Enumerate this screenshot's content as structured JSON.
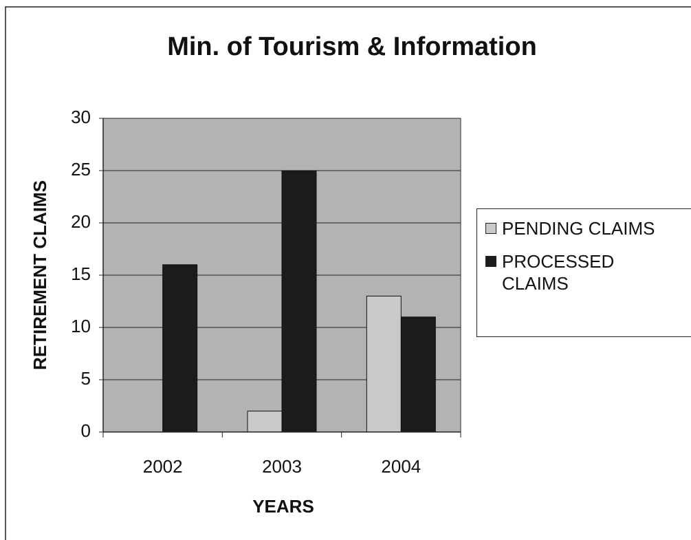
{
  "chart_data": {
    "type": "bar",
    "title": "Min. of Tourism & Information",
    "x_label": "YEARS",
    "y_label": "RETIREMENT CLAIMS",
    "categories": [
      "2002",
      "2003",
      "2004"
    ],
    "series": [
      {
        "name": "PENDING CLAIMS",
        "color": "#c9c9c9",
        "values": [
          0,
          2,
          13
        ]
      },
      {
        "name": "PROCESSED CLAIMS",
        "color": "#1c1c1c",
        "values": [
          16,
          25,
          11
        ]
      }
    ],
    "ylim": [
      0,
      30
    ],
    "yticks": [
      0,
      5,
      10,
      15,
      20,
      25,
      30
    ],
    "grid": true,
    "legend": "right"
  }
}
